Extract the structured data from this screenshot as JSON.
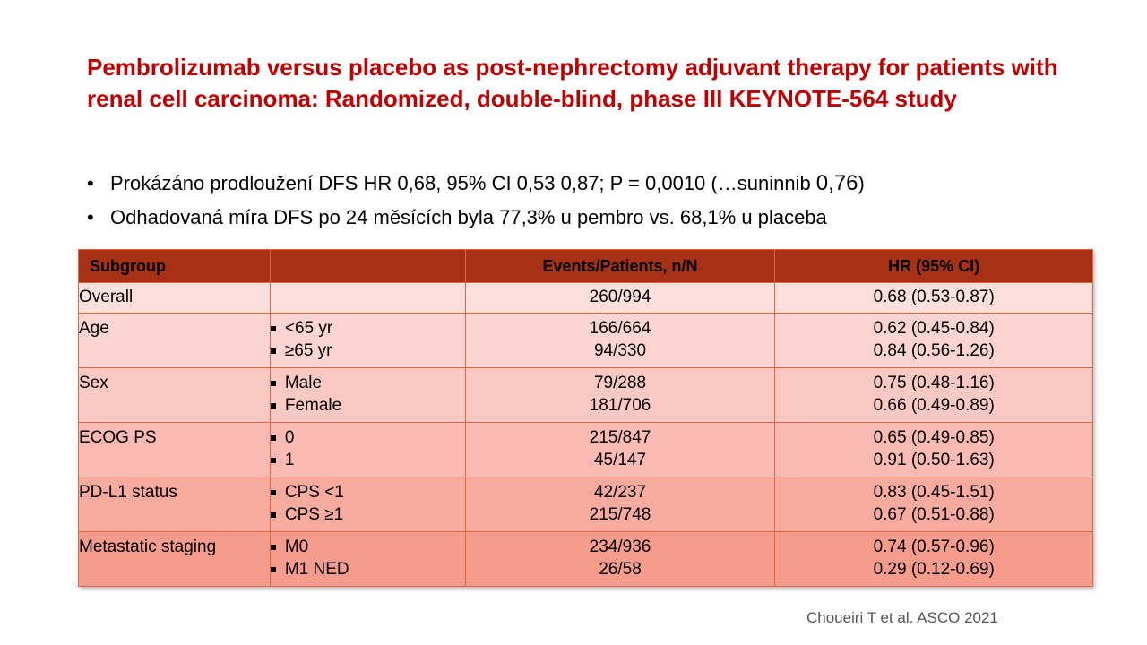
{
  "title": "Pembrolizumab versus placebo as post-nephrectomy adjuvant therapy for patients with renal cell carcinoma: Randomized, double-blind, phase III KEYNOTE-564 study",
  "bullets": [
    {
      "main": "Prokázáno prodloužení DFS HR 0,68, 95% CI 0,53 0,87; P = 0,0010 (…suninnib ",
      "emph": "0,76",
      "tail": ")"
    },
    {
      "main": "Odhadovaná míra DFS po 24 měsících byla 77,3% u pembro vs. 68,1% u placeba"
    }
  ],
  "bullet_symbol": "•",
  "table": {
    "headers": [
      "Subgroup",
      "",
      "Events/Patients, n/N",
      "HR (95% CI)"
    ],
    "rows": [
      {
        "subgroup": "Overall",
        "levels": [],
        "events": [
          "260/994"
        ],
        "hr": [
          "0.68 (0.53-0.87)"
        ]
      },
      {
        "subgroup": "Age",
        "levels": [
          "<65 yr",
          "≥65 yr"
        ],
        "events": [
          "166/664",
          "94/330"
        ],
        "hr": [
          "0.62 (0.45-0.84)",
          "0.84 (0.56-1.26)"
        ]
      },
      {
        "subgroup": "Sex",
        "levels": [
          "Male",
          "Female"
        ],
        "events": [
          "79/288",
          "181/706"
        ],
        "hr": [
          "0.75 (0.48-1.16)",
          "0.66 (0.49-0.89)"
        ]
      },
      {
        "subgroup": "ECOG PS",
        "levels": [
          "0",
          "1"
        ],
        "events": [
          "215/847",
          "45/147"
        ],
        "hr": [
          "0.65 (0.49-0.85)",
          "0.91 (0.50-1.63)"
        ]
      },
      {
        "subgroup": "PD-L1 status",
        "levels": [
          "CPS <1",
          "CPS ≥1"
        ],
        "events": [
          "42/237",
          "215/748"
        ],
        "hr": [
          "0.83 (0.45-1.51)",
          "0.67 (0.51-0.88)"
        ]
      },
      {
        "subgroup": "Metastatic staging",
        "levels": [
          "M0",
          "M1 NED"
        ],
        "events": [
          "234/936",
          "26/58"
        ],
        "hr": [
          "0.74 (0.57-0.96)",
          "0.29 (0.12-0.69)"
        ]
      }
    ]
  },
  "citation": "Choueiri T et al. ASCO 2021",
  "colors": {
    "title": "#c00000",
    "header_bg": "#a63115",
    "border": "#e8643c"
  }
}
